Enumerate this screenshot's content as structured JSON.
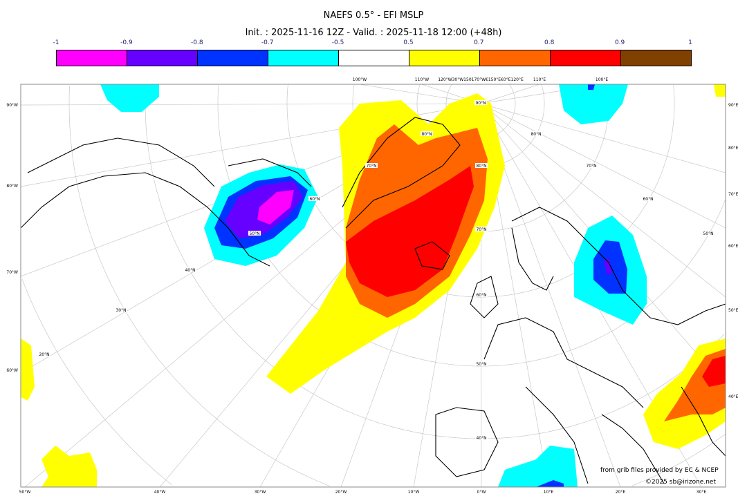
{
  "title": "NAEFS 0.5° - EFI MSLP",
  "subtitle": "Init. : 2025-11-16 12Z - Valid. : 2025-11-18 12:00 (+48h)",
  "colorbar": {
    "labels": [
      "-1",
      "-0.9",
      "-0.8",
      "-0.7",
      "-0.5",
      "0.5",
      "0.7",
      "0.8",
      "0.9",
      "1"
    ],
    "colors": [
      "#ff00ff",
      "#6600ff",
      "#0033ff",
      "#00ffff",
      "#ffffff",
      "#ffff00",
      "#ff6600",
      "#ff0000",
      "#804000"
    ]
  },
  "axes": {
    "left": [
      "90°W",
      "80°W",
      "70°W",
      "60°W"
    ],
    "right": [
      "90°E",
      "80°E",
      "70°E",
      "60°E",
      "50°E",
      "40°E"
    ],
    "bottom": [
      "50°W",
      "40°W",
      "30°W",
      "20°W",
      "10°W",
      "0°W",
      "10°E",
      "20°E",
      "30°E"
    ],
    "top": [
      "100°W",
      "110°W",
      "120°W30°W150170°W€150°E€0°E120°E",
      "110°E",
      "100°E"
    ]
  },
  "lat_labels": [
    "90°N",
    "80°N",
    "70°N",
    "60°N",
    "50°N",
    "40°N",
    "30°N",
    "20°N",
    "80°N",
    "70°N",
    "60°N",
    "50°N",
    "40°N",
    "80°N",
    "70°N",
    "60°N",
    "50°N"
  ],
  "credits": {
    "source": "from grib files provided by EC & NCEP",
    "copyright": "©2025 sb@irizone.net"
  }
}
